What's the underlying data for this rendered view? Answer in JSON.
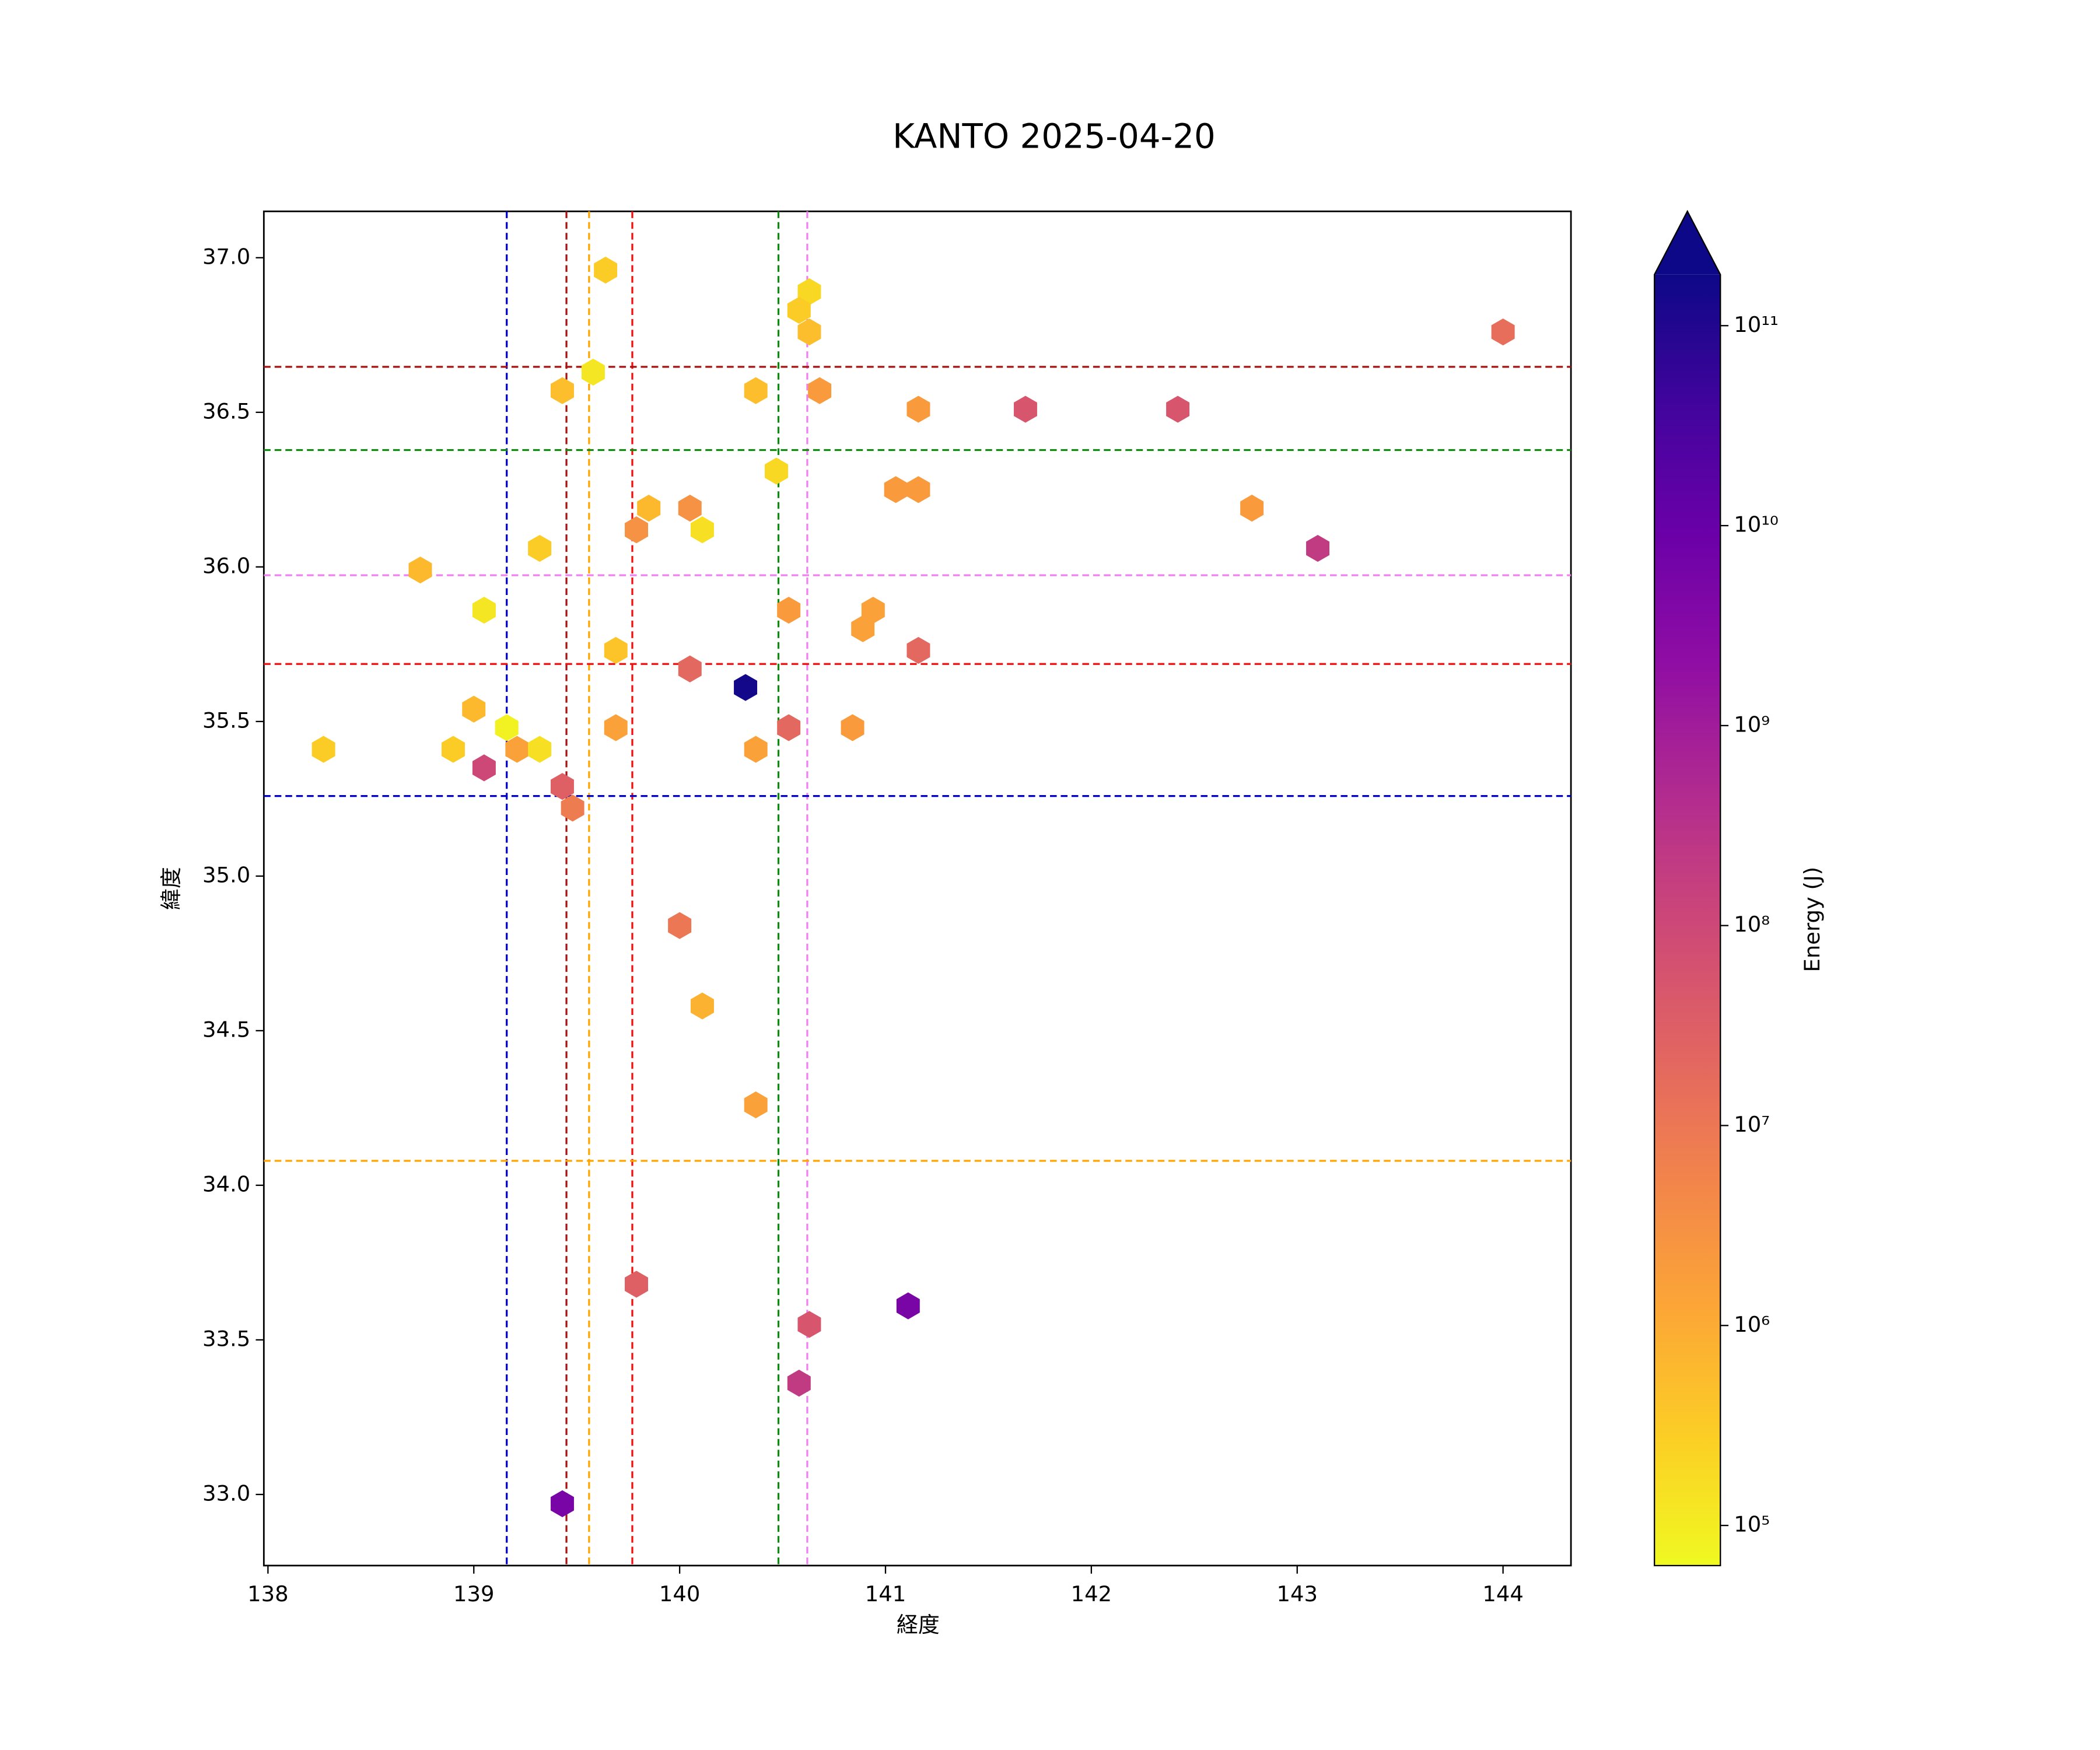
{
  "chart_data": {
    "type": "hexbin",
    "title": "KANTO 2025-04-20",
    "x_label": "経度",
    "y_label": "緯度",
    "x": [
      139.64,
      140.63,
      140.58,
      140.63,
      144.0,
      139.58,
      139.43,
      140.37,
      140.68,
      141.16,
      141.68,
      142.42,
      140.47,
      141.05,
      141.16,
      139.79,
      139.85,
      140.05,
      140.11,
      142.78,
      139.32,
      143.1,
      138.74,
      139.05,
      140.53,
      140.94,
      140.89,
      139.69,
      141.16,
      140.05,
      140.32,
      139.0,
      139.16,
      139.69,
      140.53,
      140.84,
      138.27,
      138.9,
      139.21,
      139.32,
      140.37,
      139.05,
      139.43,
      139.48,
      140.0,
      140.11,
      140.37,
      139.79,
      141.11,
      140.63,
      140.58,
      139.43
    ],
    "y": [
      36.96,
      36.89,
      36.83,
      36.76,
      36.76,
      36.63,
      36.57,
      36.57,
      36.57,
      36.51,
      36.51,
      36.51,
      36.31,
      36.25,
      36.25,
      36.12,
      36.19,
      36.19,
      36.12,
      36.19,
      36.06,
      36.06,
      35.99,
      35.86,
      35.86,
      35.86,
      35.8,
      35.73,
      35.73,
      35.67,
      35.61,
      35.54,
      35.48,
      35.48,
      35.48,
      35.48,
      35.41,
      35.41,
      35.41,
      35.41,
      35.41,
      35.35,
      35.29,
      35.22,
      34.84,
      34.58,
      34.26,
      33.68,
      33.61,
      33.55,
      33.36,
      32.97
    ],
    "values": [
      300000,
      200000,
      300000,
      500000,
      15000000,
      120000,
      500000,
      500000,
      2000000,
      2000000,
      50000000,
      50000000,
      200000,
      2000000,
      2000000,
      3000000,
      600000,
      3000000,
      150000,
      2000000,
      300000,
      200000000,
      600000,
      120000,
      2000000,
      1500000,
      1500000,
      400000,
      20000000,
      20000000,
      150000000000,
      600000,
      80000,
      1500000,
      20000000,
      2000000,
      300000,
      300000,
      1500000,
      150000,
      1500000,
      100000000,
      30000000,
      8000000,
      10000000,
      800000,
      1500000,
      30000000,
      5000000000,
      50000000,
      200000000,
      5000000000
    ],
    "xlim": [
      137.98,
      144.33
    ],
    "ylim": [
      32.77,
      37.15
    ],
    "xticks": [
      138,
      139,
      140,
      141,
      142,
      143,
      144
    ],
    "yticks": [
      {
        "value": 33,
        "label": "33.0"
      },
      {
        "value": 33.5,
        "label": "33.5"
      },
      {
        "value": 34,
        "label": "34.0"
      },
      {
        "value": 34.5,
        "label": "34.5"
      },
      {
        "value": 35,
        "label": "35.0"
      },
      {
        "value": 35.5,
        "label": "35.5"
      },
      {
        "value": 36,
        "label": "36.0"
      },
      {
        "value": 36.5,
        "label": "36.5"
      },
      {
        "value": 37,
        "label": "37.0"
      }
    ],
    "vlines": [
      {
        "x": 139.16,
        "color": "#0000cc"
      },
      {
        "x": 139.45,
        "color": "#aa1111"
      },
      {
        "x": 139.56,
        "color": "#ffa500"
      },
      {
        "x": 139.77,
        "color": "#ee1111"
      },
      {
        "x": 140.48,
        "color": "#118811"
      },
      {
        "x": 140.62,
        "color": "#ee82ee"
      }
    ],
    "hlines": [
      {
        "y": 36.647,
        "color": "#aa1111"
      },
      {
        "y": 36.378,
        "color": "#118811"
      },
      {
        "y": 35.973,
        "color": "#ee82ee"
      },
      {
        "y": 35.686,
        "color": "#ee1111"
      },
      {
        "y": 35.259,
        "color": "#0000cc"
      },
      {
        "y": 34.079,
        "color": "#ffa500"
      }
    ],
    "colorbar": {
      "label": "Energy (J)",
      "colormap": "plasma",
      "log": true,
      "extend": "max",
      "clim": [
        63000,
        180000000000
      ],
      "ticks": [
        {
          "value": 100000,
          "label": "10⁵"
        },
        {
          "value": 1000000,
          "label": "10⁶"
        },
        {
          "value": 10000000,
          "label": "10⁷"
        },
        {
          "value": 100000000,
          "label": "10⁸"
        },
        {
          "value": 1000000000,
          "label": "10⁹"
        },
        {
          "value": 10000000000,
          "label": "10¹⁰"
        },
        {
          "value": 100000000000,
          "label": "10¹¹"
        }
      ]
    }
  }
}
